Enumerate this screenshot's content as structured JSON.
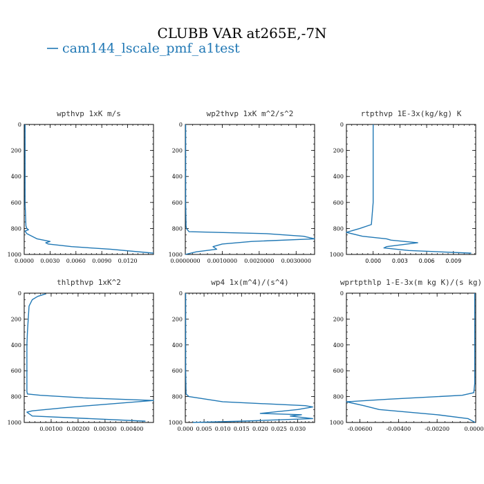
{
  "figure": {
    "title": "CLUBB VAR at265E,-7N",
    "legend_label": "cam144_lscale_pmf_a1test",
    "line_color": "#1f77b4"
  },
  "chart_data": [
    {
      "type": "line",
      "title": "wpthvp   1xK m/s",
      "xlim": [
        0,
        0.015
      ],
      "ylim": [
        1000,
        0
      ],
      "xticks": [
        0,
        0.003,
        0.006,
        0.009,
        0.012
      ],
      "xtick_labels": [
        "0.0000",
        "0.0030",
        "0.0060",
        "0.0090",
        "0.0120"
      ],
      "yticks": [
        0,
        200,
        400,
        600,
        800,
        1000
      ],
      "ytick_labels": [
        "0",
        "200",
        "400",
        "600",
        "800",
        "1000"
      ],
      "tick_font": "serif",
      "series": [
        {
          "x": [
            0.0001,
            0.0001,
            0.0001,
            0.0001,
            0.0002,
            0.0003,
            0.0005,
            0.0001,
            0.0003,
            0.0015,
            0.003,
            0.0025,
            0.0028,
            0.0055,
            0.01,
            0.015
          ],
          "y": [
            0,
            200,
            400,
            600,
            780,
            800,
            810,
            820,
            840,
            880,
            900,
            910,
            920,
            940,
            960,
            990
          ]
        }
      ]
    },
    {
      "type": "line",
      "title": "wp2thvp   1xK m^2/s^2",
      "xlim": [
        0,
        0.0035
      ],
      "ylim": [
        1000,
        0
      ],
      "xticks": [
        0,
        0.001,
        0.002,
        0.003
      ],
      "xtick_labels": [
        "0.0000000",
        "0.0010000",
        "0.0020000",
        "0.0030000"
      ],
      "yticks": [
        0,
        200,
        400,
        600,
        800,
        1000
      ],
      "ytick_labels": [
        "0",
        "200",
        "400",
        "600",
        "800",
        "1000"
      ],
      "tick_font": "serif",
      "series": [
        {
          "x": [
            1e-05,
            1e-05,
            1e-05,
            1e-05,
            2e-05,
            3e-05,
            0.0001,
            0.0022,
            0.0032,
            0.0035,
            0.0018,
            0.001,
            0.00075,
            0.00085,
            0.0003,
            0.0
          ],
          "y": [
            0,
            200,
            400,
            600,
            780,
            800,
            825,
            840,
            860,
            880,
            900,
            920,
            940,
            960,
            980,
            1000
          ]
        }
      ]
    },
    {
      "type": "line",
      "title": "rtpthvp   1E-3x(kg/kg) K",
      "xlim": [
        -0.003,
        0.0115
      ],
      "ylim": [
        1000,
        0
      ],
      "xticks": [
        0,
        0.003,
        0.006,
        0.009
      ],
      "xtick_labels": [
        "0.000",
        "0.003",
        "0.006",
        "0.009"
      ],
      "yticks": [
        0,
        200,
        400,
        600,
        800,
        1000
      ],
      "ytick_labels": [
        "0",
        "200",
        "400",
        "600",
        "800",
        "1000"
      ],
      "tick_font": "sans",
      "series": [
        {
          "x": [
            0.0,
            0.0,
            0.0,
            0.0,
            -0.0002,
            -0.0015,
            -0.003,
            -0.0012,
            0.0015,
            0.002,
            0.005,
            0.0015,
            0.0012,
            0.004,
            0.011
          ],
          "y": [
            0,
            200,
            400,
            600,
            770,
            800,
            830,
            860,
            880,
            890,
            910,
            940,
            950,
            970,
            990
          ]
        }
      ]
    },
    {
      "type": "line",
      "title": "thlpthvp   1xK^2",
      "xlim": [
        0,
        0.0048
      ],
      "ylim": [
        1000,
        0
      ],
      "xticks": [
        0.001,
        0.002,
        0.003,
        0.004
      ],
      "xtick_labels": [
        "0.00100",
        "0.00200",
        "0.00300",
        "0.00400"
      ],
      "yticks": [
        0,
        200,
        400,
        600,
        800,
        1000
      ],
      "ytick_labels": [
        "0",
        "200",
        "400",
        "600",
        "800",
        "1000"
      ],
      "tick_font": "serif",
      "series": [
        {
          "x": [
            0.0008,
            0.0005,
            0.0003,
            0.00018,
            0.00015,
            0.00012,
            0.0001,
            0.0001,
            0.0001,
            0.0001,
            0.00012,
            0.0006,
            0.0022,
            0.0048,
            0.0018,
            0.0003,
            0.0001,
            0.0003,
            0.0045
          ],
          "y": [
            5,
            25,
            50,
            100,
            200,
            300,
            400,
            600,
            750,
            760,
            780,
            790,
            810,
            830,
            880,
            910,
            920,
            950,
            990
          ]
        }
      ]
    },
    {
      "type": "line",
      "title": "wp4   1x(m^4)/(s^4)",
      "xlim": [
        0,
        0.0345
      ],
      "ylim": [
        1000,
        0
      ],
      "xticks": [
        0,
        0.005,
        0.01,
        0.015,
        0.02,
        0.025,
        0.03
      ],
      "xtick_labels": [
        "0.000",
        "0.005",
        "0.010",
        "0.015",
        "0.020",
        "0.025",
        "0.030"
      ],
      "yticks": [
        0,
        200,
        400,
        600,
        800,
        1000
      ],
      "ytick_labels": [
        "0",
        "200",
        "400",
        "600",
        "800",
        "1000"
      ],
      "tick_font": "serif",
      "series": [
        {
          "x": [
            0.0001,
            0.0001,
            0.0001,
            0.0001,
            0.0002,
            0.001,
            0.01,
            0.032,
            0.034,
            0.03,
            0.02,
            0.031,
            0.028,
            0.034,
            0.015,
            0.002
          ],
          "y": [
            0,
            200,
            400,
            600,
            780,
            800,
            840,
            870,
            880,
            900,
            930,
            940,
            950,
            970,
            990,
            1000
          ]
        }
      ]
    },
    {
      "type": "line",
      "title": "wprtpthlp   1-E-3x(m kg K)/(s kg)",
      "xlim": [
        -0.0067,
        0
      ],
      "ylim": [
        1000,
        0
      ],
      "xticks": [
        -0.006,
        -0.004,
        -0.002,
        0
      ],
      "xtick_labels": [
        "-0.00600",
        "-0.00400",
        "-0.00200",
        "0.00000"
      ],
      "yticks": [
        0,
        200,
        400,
        600,
        800,
        1000
      ],
      "ytick_labels": [
        "0",
        "200",
        "400",
        "600",
        "800",
        "1000"
      ],
      "tick_font": "serif",
      "series": [
        {
          "x": [
            -5e-05,
            -5e-05,
            -5e-05,
            -5e-05,
            -5e-05,
            -0.0001,
            -0.0007,
            -0.0045,
            -0.0067,
            -0.0058,
            -0.005,
            -0.002,
            -0.0004,
            -3e-05
          ],
          "y": [
            0,
            200,
            400,
            600,
            700,
            770,
            790,
            820,
            840,
            870,
            900,
            940,
            970,
            1000
          ]
        }
      ]
    }
  ]
}
